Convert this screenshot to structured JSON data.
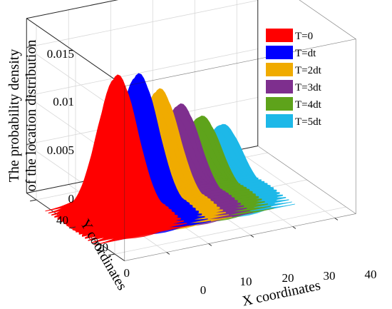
{
  "chart_data": {
    "type": "area",
    "projection": "3d",
    "title": "",
    "xlabel": "X coordinates",
    "ylabel": "Y coordinates",
    "zlabel_lines": [
      "The probability density",
      "of the location distribution"
    ],
    "xlim": [
      -10,
      45
    ],
    "ylim": [
      -5,
      45
    ],
    "zlim": [
      0,
      0.018
    ],
    "x_ticks": [
      0,
      10,
      20,
      30,
      40
    ],
    "y_ticks": [
      0,
      20,
      40
    ],
    "z_ticks": [
      0,
      0.005,
      0.01,
      0.015
    ],
    "grid": true,
    "legend_position": "top-right",
    "series": [
      {
        "name": "T=0",
        "color": "#ff0000",
        "peak_x": 0,
        "peak_y": 20,
        "peak_density": 0.0148
      },
      {
        "name": "T=dt",
        "color": "#0000ff",
        "peak_x": 5,
        "peak_y": 20,
        "peak_density": 0.0145
      },
      {
        "name": "T=2dt",
        "color": "#f0ab00",
        "peak_x": 10,
        "peak_y": 20,
        "peak_density": 0.0125
      },
      {
        "name": "T=3dt",
        "color": "#7e2f8e",
        "peak_x": 15,
        "peak_y": 20,
        "peak_density": 0.0105
      },
      {
        "name": "T=4dt",
        "color": "#5ea31b",
        "peak_x": 20,
        "peak_y": 20,
        "peak_density": 0.0088
      },
      {
        "name": "T=5dt",
        "color": "#1db8e8",
        "peak_x": 25,
        "peak_y": 20,
        "peak_density": 0.0075
      }
    ]
  }
}
